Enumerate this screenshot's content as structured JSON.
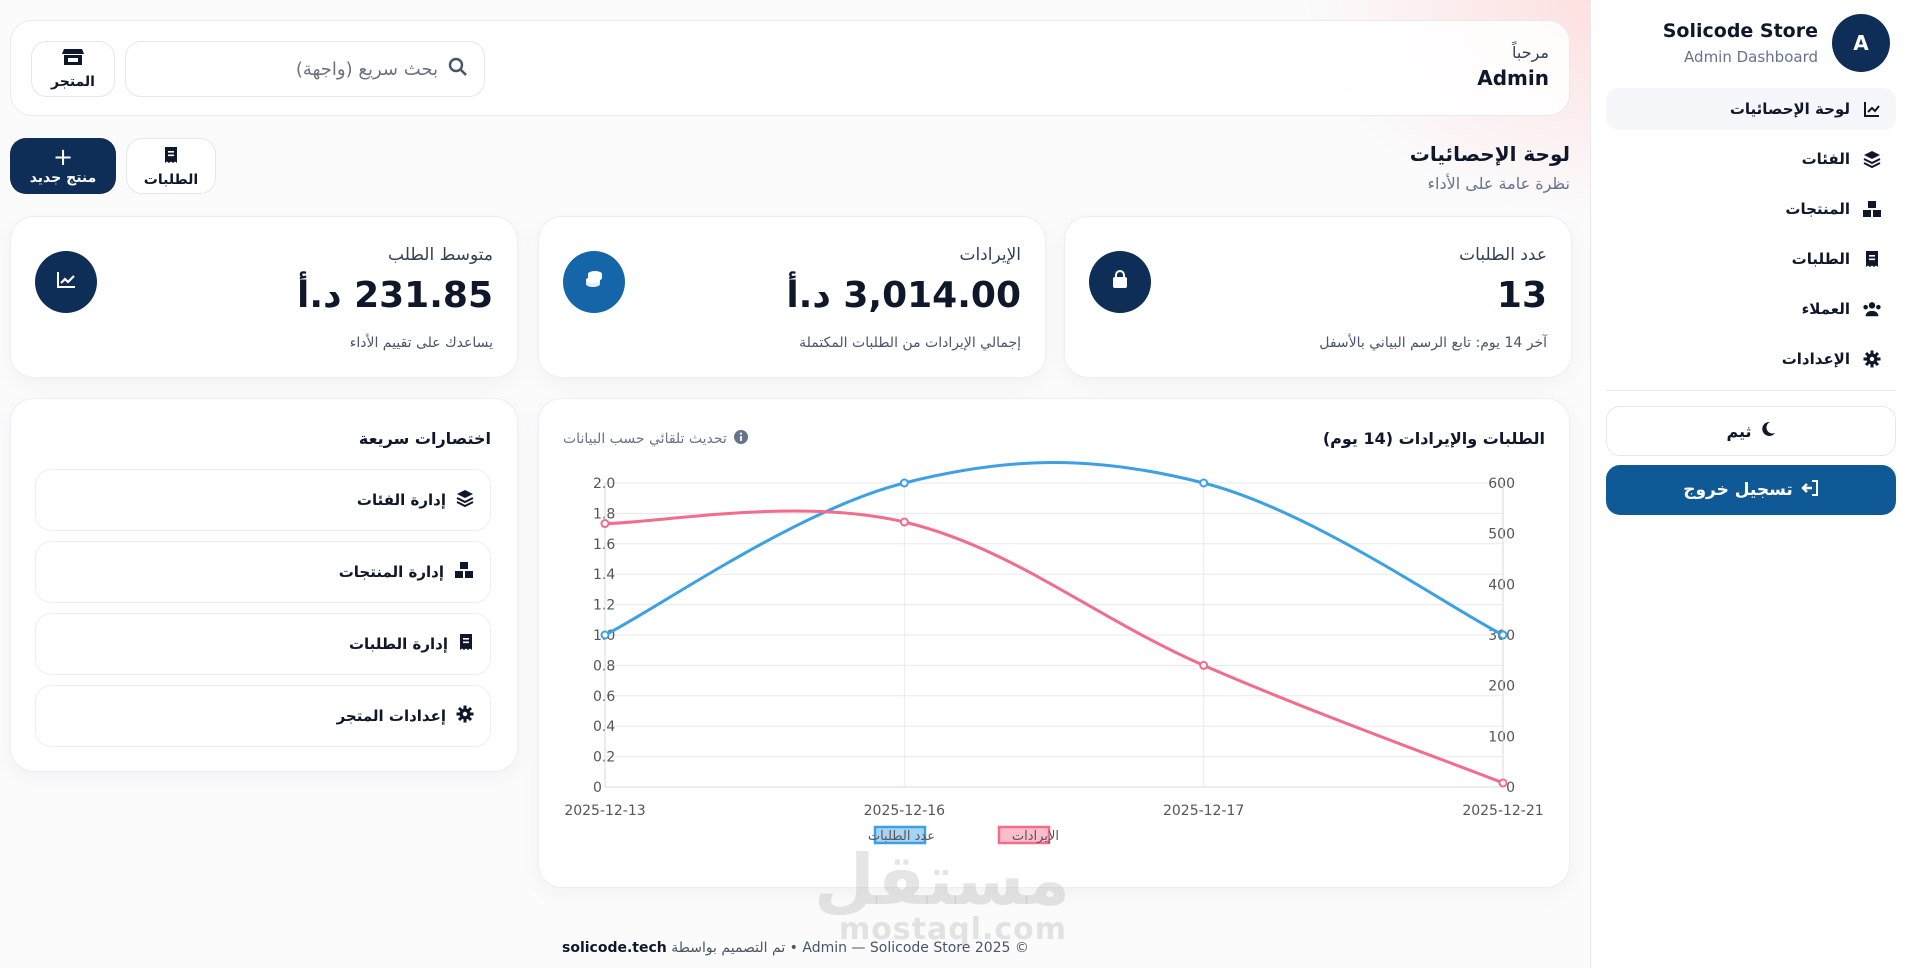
{
  "sidebar": {
    "avatar": "A",
    "brand_name": "Solicode Store",
    "brand_sub": "Admin Dashboard",
    "items": [
      {
        "label": "لوحة الإحصائيات",
        "icon": "chart-line-icon",
        "active": true
      },
      {
        "label": "الفئات",
        "icon": "layers-icon"
      },
      {
        "label": "المنتجات",
        "icon": "boxes-icon"
      },
      {
        "label": "الطلبات",
        "icon": "receipt-icon"
      },
      {
        "label": "العملاء",
        "icon": "users-icon"
      },
      {
        "label": "الإعدادات",
        "icon": "gear-icon"
      }
    ],
    "theme_label": "ثيم",
    "logout_label": "تسجيل خروج"
  },
  "topbar": {
    "greeting": "مرحباً",
    "user_name": "Admin",
    "search_placeholder": "بحث سريع (واجهة)",
    "store_label": "المتجر"
  },
  "header": {
    "title": "لوحة الإحصائيات",
    "subtitle": "نظرة عامة على الأداء",
    "orders_label": "الطلبات",
    "new_product_label": "منتج جديد"
  },
  "stats": [
    {
      "label": "عدد الطلبات",
      "value": "13",
      "note": "آخر 14 يوم: تابع الرسم البياني بالأسفل",
      "icon": "shopping-bag-icon"
    },
    {
      "label": "الإيرادات",
      "value": "3,014.00 د.أ",
      "note": "إجمالي الإيرادات من الطلبات المكتملة",
      "icon": "coins-icon"
    },
    {
      "label": "متوسط الطلب",
      "value": "231.85 د.أ",
      "note": "يساعدك على تقييم الأداء",
      "icon": "chart-icon"
    }
  ],
  "chart": {
    "title": "الطلبات والإيرادات (14 يوم)",
    "hint": "تحديث تلقائي حسب البيانات"
  },
  "chart_data": {
    "type": "line",
    "x": [
      "2025-12-13",
      "2025-12-16",
      "2025-12-17",
      "2025-12-21"
    ],
    "series": [
      {
        "name": "عدد الطلبات",
        "axis": "left",
        "color": "#3ea0e4",
        "values": [
          1,
          2,
          2,
          1
        ]
      },
      {
        "name": "الإيرادات",
        "axis": "right",
        "color": "#f26d8d",
        "values": [
          520,
          523,
          240,
          8
        ]
      }
    ],
    "y_left": {
      "min": 0,
      "max": 2,
      "ticks": [
        "0",
        "0.2",
        "0.4",
        "0.6",
        "0.8",
        "1.0",
        "1.2",
        "1.4",
        "1.6",
        "1.8",
        "2.0"
      ]
    },
    "y_right": {
      "min": 0,
      "max": 600,
      "ticks": [
        "0",
        "100",
        "200",
        "300",
        "400",
        "500",
        "600"
      ]
    },
    "grid": true,
    "legend": "bottom"
  },
  "shortcuts": {
    "title": "اختصارات سريعة",
    "items": [
      {
        "label": "إدارة الفئات",
        "icon": "layers-icon"
      },
      {
        "label": "إدارة المنتجات",
        "icon": "boxes-icon"
      },
      {
        "label": "إدارة الطلبات",
        "icon": "receipt-icon"
      },
      {
        "label": "إعدادات المتجر",
        "icon": "gear-icon"
      }
    ]
  },
  "footer": {
    "text": "© 2025 Admin — Solicode Store • تم التصميم بواسطة",
    "brand": "solicode.tech"
  },
  "watermark": {
    "ar": "مستقل",
    "en": "mostaql.com"
  }
}
